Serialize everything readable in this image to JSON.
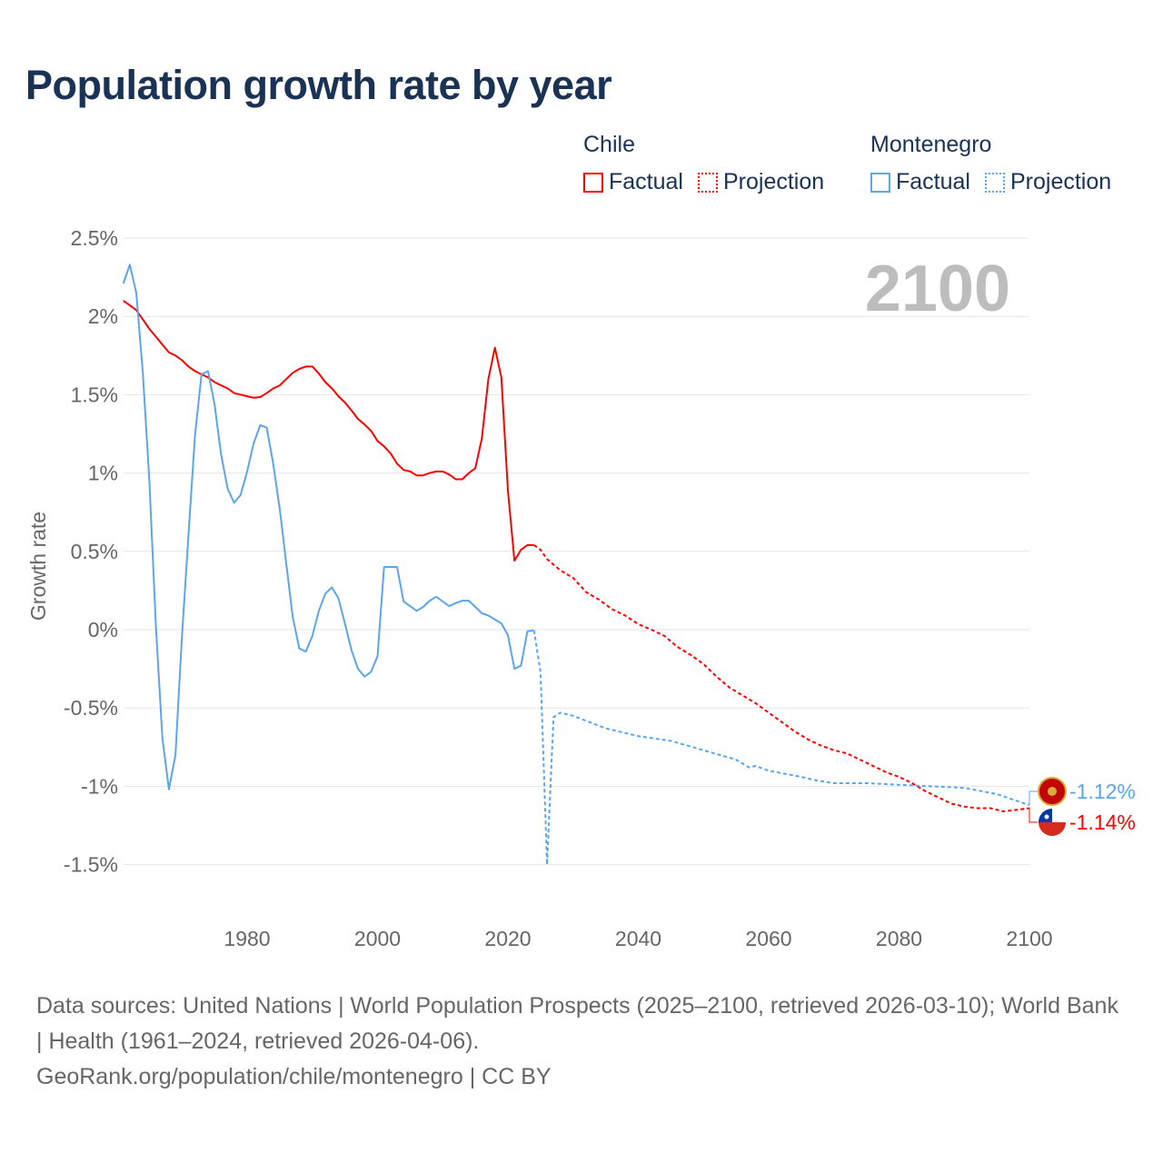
{
  "title": "Population growth rate by year",
  "legend": {
    "groups": [
      {
        "name": "Chile",
        "factual": "Factual",
        "projection": "Projection",
        "color": "#ff0000"
      },
      {
        "name": "Montenegro",
        "factual": "Factual",
        "projection": "Projection",
        "color": "#5aa5ec"
      }
    ]
  },
  "footer": {
    "sources": "Data sources: United Nations | World Population Prospects (2025–2100, retrieved 2026-03-10); World Bank | Health (1961–2024, retrieved 2026-04-06).",
    "credit": "GeoRank.org/population/chile/montenegro | CC BY"
  },
  "chart_data": {
    "type": "line",
    "title": "Population growth rate by year",
    "ylabel": "Growth rate",
    "xlabel": "",
    "current_year_label": "2100",
    "xlim": [
      1961,
      2100
    ],
    "ylim": [
      -1.5,
      2.5
    ],
    "x_ticks": [
      1980,
      2000,
      2020,
      2040,
      2060,
      2080,
      2100
    ],
    "y_ticks": [
      {
        "v": 2.5,
        "label": "2.5%"
      },
      {
        "v": 2,
        "label": "2%"
      },
      {
        "v": 1.5,
        "label": "1.5%"
      },
      {
        "v": 1,
        "label": "1%"
      },
      {
        "v": 0.5,
        "label": "0.5%"
      },
      {
        "v": 0,
        "label": "0%"
      },
      {
        "v": -0.5,
        "label": "-0.5%"
      },
      {
        "v": -1,
        "label": "-1%"
      },
      {
        "v": -1.5,
        "label": "-1.5%"
      }
    ],
    "grid": true,
    "series": [
      {
        "name": "Chile",
        "kind": "factual",
        "color": "#ff0000",
        "x0": 1961,
        "values": [
          2.1,
          2.07,
          2.04,
          1.98,
          1.92,
          1.87,
          1.82,
          1.77,
          1.75,
          1.72,
          1.68,
          1.65,
          1.63,
          1.61,
          1.58,
          1.56,
          1.54,
          1.51,
          1.5,
          1.49,
          1.48,
          1.485,
          1.51,
          1.54,
          1.56,
          1.6,
          1.64,
          1.665,
          1.68,
          1.68,
          1.635,
          1.58,
          1.54,
          1.49,
          1.45,
          1.4,
          1.345,
          1.31,
          1.27,
          1.205,
          1.17,
          1.125,
          1.06,
          1.02,
          1.01,
          0.985,
          0.985,
          1.0,
          1.01,
          1.01,
          0.99,
          0.96,
          0.96,
          1.0,
          1.03,
          1.22,
          1.6,
          1.8,
          1.61,
          0.89,
          0.44,
          0.51,
          0.54,
          0.54
        ]
      },
      {
        "name": "Chile",
        "kind": "projection",
        "color": "#ff0000",
        "points": [
          [
            2024,
            0.54
          ],
          [
            2025,
            0.51
          ],
          [
            2026,
            0.45
          ],
          [
            2028,
            0.38
          ],
          [
            2030,
            0.33
          ],
          [
            2032,
            0.24
          ],
          [
            2034,
            0.19
          ],
          [
            2036,
            0.13
          ],
          [
            2038,
            0.09
          ],
          [
            2040,
            0.035
          ],
          [
            2042,
            0.0
          ],
          [
            2044,
            -0.04
          ],
          [
            2046,
            -0.11
          ],
          [
            2048,
            -0.16
          ],
          [
            2050,
            -0.22
          ],
          [
            2052,
            -0.3
          ],
          [
            2054,
            -0.37
          ],
          [
            2056,
            -0.42
          ],
          [
            2058,
            -0.47
          ],
          [
            2060,
            -0.53
          ],
          [
            2062,
            -0.59
          ],
          [
            2064,
            -0.65
          ],
          [
            2066,
            -0.7
          ],
          [
            2068,
            -0.74
          ],
          [
            2070,
            -0.77
          ],
          [
            2072,
            -0.79
          ],
          [
            2074,
            -0.83
          ],
          [
            2076,
            -0.87
          ],
          [
            2078,
            -0.91
          ],
          [
            2080,
            -0.94
          ],
          [
            2082,
            -0.98
          ],
          [
            2084,
            -1.03
          ],
          [
            2086,
            -1.07
          ],
          [
            2088,
            -1.11
          ],
          [
            2090,
            -1.13
          ],
          [
            2092,
            -1.14
          ],
          [
            2094,
            -1.14
          ],
          [
            2096,
            -1.16
          ],
          [
            2098,
            -1.15
          ],
          [
            2100,
            -1.14
          ]
        ]
      },
      {
        "name": "Montenegro",
        "kind": "factual",
        "color": "#5aa5ec",
        "x0": 1961,
        "values": [
          2.21,
          2.33,
          2.15,
          1.64,
          0.95,
          0.02,
          -0.69,
          -1.02,
          -0.8,
          -0.04,
          0.6,
          1.24,
          1.63,
          1.65,
          1.44,
          1.12,
          0.9,
          0.81,
          0.86,
          1.01,
          1.19,
          1.305,
          1.29,
          1.06,
          0.77,
          0.42,
          0.08,
          -0.12,
          -0.14,
          -0.04,
          0.12,
          0.23,
          0.27,
          0.2,
          0.04,
          -0.13,
          -0.25,
          -0.3,
          -0.27,
          -0.17,
          0.4,
          0.4,
          0.4,
          0.18,
          0.15,
          0.12,
          0.145,
          0.185,
          0.21,
          0.18,
          0.15,
          0.17,
          0.185,
          0.185,
          0.145,
          0.105,
          0.09,
          0.065,
          0.04,
          -0.035,
          -0.25,
          -0.23,
          -0.01,
          -0.005
        ]
      },
      {
        "name": "Montenegro",
        "kind": "projection",
        "color": "#5aa5ec",
        "points": [
          [
            2024,
            -0.005
          ],
          [
            2025,
            -0.27
          ],
          [
            2026,
            -1.5
          ],
          [
            2027,
            -0.56
          ],
          [
            2028,
            -0.53
          ],
          [
            2030,
            -0.55
          ],
          [
            2035,
            -0.63
          ],
          [
            2040,
            -0.68
          ],
          [
            2045,
            -0.71
          ],
          [
            2050,
            -0.77
          ],
          [
            2055,
            -0.83
          ],
          [
            2057,
            -0.88
          ],
          [
            2058,
            -0.87
          ],
          [
            2060,
            -0.9
          ],
          [
            2065,
            -0.94
          ],
          [
            2067,
            -0.96
          ],
          [
            2070,
            -0.98
          ],
          [
            2075,
            -0.98
          ],
          [
            2080,
            -0.99
          ],
          [
            2085,
            -1.0
          ],
          [
            2090,
            -1.01
          ],
          [
            2095,
            -1.05
          ],
          [
            2100,
            -1.12
          ]
        ]
      }
    ],
    "end_labels": [
      {
        "country": "Montenegro",
        "value": -1.12,
        "label": "-1.12%",
        "color": "#5aa5ec"
      },
      {
        "country": "Chile",
        "value": -1.14,
        "label": "-1.14%",
        "color": "#ff0000"
      }
    ]
  }
}
